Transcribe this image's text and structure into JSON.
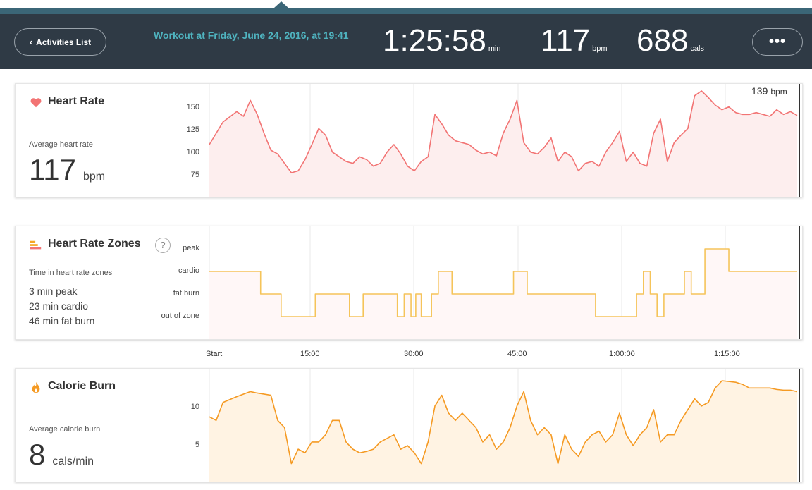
{
  "header": {
    "back_label": "Activities List",
    "workout_title": "Workout at Friday, June 24, 2016, at 19:41",
    "duration": "1:25:58",
    "duration_unit": "min",
    "heart_rate": "117",
    "heart_rate_unit": "bpm",
    "calories": "688",
    "calories_unit": "cals",
    "more_label": "•••"
  },
  "heart_rate": {
    "title": "Heart Rate",
    "avg_label": "Average heart rate",
    "avg_value": "117",
    "avg_unit": "bpm",
    "y_ticks": [
      "150",
      "125",
      "100",
      "75"
    ],
    "readout_value": "139",
    "readout_unit": "bpm",
    "color": "#f27474"
  },
  "zones": {
    "title": "Heart Rate Zones",
    "help_label": "?",
    "desc_label": "Time in heart rate zones",
    "lines": [
      "3 min peak",
      "23 min cardio",
      "46 min fat burn"
    ],
    "y_ticks": [
      "peak",
      "cardio",
      "fat burn",
      "out of zone"
    ],
    "color": "#f5c45a"
  },
  "x_axis": {
    "ticks": [
      "Start",
      "15:00",
      "30:00",
      "45:00",
      "1:00:00",
      "1:15:00"
    ]
  },
  "calories": {
    "title": "Calorie Burn",
    "avg_label": "Average calorie burn",
    "avg_value": "8",
    "avg_unit": "cals/min",
    "y_ticks": [
      "10",
      "5"
    ],
    "color": "#f59a23"
  },
  "chart_data": [
    {
      "type": "line",
      "ylim": [
        60,
        165
      ],
      "x": [
        0,
        2,
        4,
        5,
        6,
        7,
        8,
        9,
        10,
        11,
        12,
        13,
        14,
        15,
        16,
        17,
        18,
        19,
        20,
        21,
        22,
        23,
        24,
        25,
        26,
        27,
        28,
        29,
        30,
        31,
        32,
        33,
        34,
        35,
        36,
        37,
        38,
        39,
        40,
        41,
        42,
        43,
        44,
        45,
        46,
        47,
        48,
        49,
        50,
        51,
        52,
        53,
        54,
        55,
        56,
        57,
        58,
        59,
        60,
        61,
        62,
        63,
        64,
        65,
        66,
        67,
        68,
        69,
        70,
        71,
        72,
        73,
        74,
        75,
        76,
        77,
        78,
        79,
        80,
        81,
        82,
        83,
        84,
        85,
        86
      ],
      "series": [
        {
          "values": [
            108,
            132,
            143,
            138,
            155,
            140,
            120,
            102,
            98,
            88,
            78,
            80,
            92,
            108,
            125,
            118,
            100,
            95,
            90,
            88,
            95,
            92,
            85,
            88,
            100,
            108,
            98,
            85,
            80,
            90,
            95,
            140,
            130,
            118,
            112,
            110,
            108,
            102,
            98,
            100,
            96,
            120,
            135,
            155,
            110,
            100,
            98,
            105,
            115,
            90,
            100,
            95,
            80,
            88,
            90,
            85,
            100,
            110,
            122,
            90,
            100,
            88,
            85,
            120,
            135,
            90,
            110,
            118,
            125,
            160,
            165,
            158,
            150,
            145,
            148,
            142,
            140,
            140,
            142,
            140,
            138,
            145,
            140,
            143,
            139
          ]
        }
      ]
    },
    {
      "type": "line",
      "y_categories": [
        "out of zone",
        "fat burn",
        "cardio",
        "peak"
      ],
      "x": [
        0,
        0.4,
        7.5,
        10.5,
        15.5,
        20.5,
        22.5,
        27.5,
        28.5,
        29.5,
        30.2,
        31,
        32.5,
        33.5,
        35.5,
        44.5,
        46.5,
        56.5,
        62.5,
        63.5,
        64.5,
        65.5,
        66.5,
        69.5,
        70.5,
        72.5,
        76,
        86
      ],
      "series": [
        {
          "values": [
            2,
            2,
            1,
            0,
            1,
            0,
            1,
            0,
            1,
            0,
            1,
            0,
            1,
            2,
            1,
            2,
            1,
            0,
            1,
            2,
            1,
            0,
            1,
            2,
            1,
            3,
            2,
            2
          ]
        }
      ]
    },
    {
      "type": "area",
      "ylim": [
        0,
        14
      ],
      "x": [
        0,
        1,
        2,
        4,
        6,
        7,
        9,
        10,
        11,
        12,
        13,
        14,
        15,
        16,
        17,
        18,
        19,
        20,
        21,
        22,
        23,
        24,
        25,
        26,
        27,
        28,
        29,
        30,
        31,
        32,
        33,
        34,
        35,
        36,
        37,
        38,
        39,
        40,
        41,
        42,
        43,
        44,
        45,
        46,
        47,
        48,
        49,
        50,
        51,
        52,
        53,
        54,
        55,
        56,
        57,
        58,
        59,
        60,
        61,
        62,
        63,
        64,
        65,
        66,
        67,
        68,
        69,
        70,
        71,
        72,
        73,
        74,
        75,
        76,
        77,
        78,
        79,
        80,
        81,
        82,
        83,
        84,
        85,
        86
      ],
      "series": [
        {
          "values": [
            8.5,
            8,
            10.5,
            11.3,
            12,
            11.8,
            11.5,
            8,
            7,
            2,
            4,
            3.5,
            5,
            5,
            6,
            8,
            8,
            5,
            4,
            3.5,
            3.7,
            4,
            5,
            5.5,
            6,
            4,
            4.5,
            3.5,
            2,
            5,
            10,
            11.5,
            9,
            8,
            9,
            8,
            7,
            5,
            6,
            4,
            5,
            7,
            10,
            12,
            8,
            6,
            7,
            6,
            2,
            6,
            4,
            3,
            5,
            6,
            6.5,
            5,
            6,
            9,
            6,
            4.5,
            6,
            7,
            9.5,
            5,
            6,
            6,
            8,
            9.5,
            11,
            10,
            10.5,
            12.5,
            13.5,
            13.4,
            13.3,
            13,
            12.5,
            12.5,
            12.5,
            12.5,
            12.3,
            12.2,
            12.2,
            12
          ]
        }
      ]
    }
  ]
}
